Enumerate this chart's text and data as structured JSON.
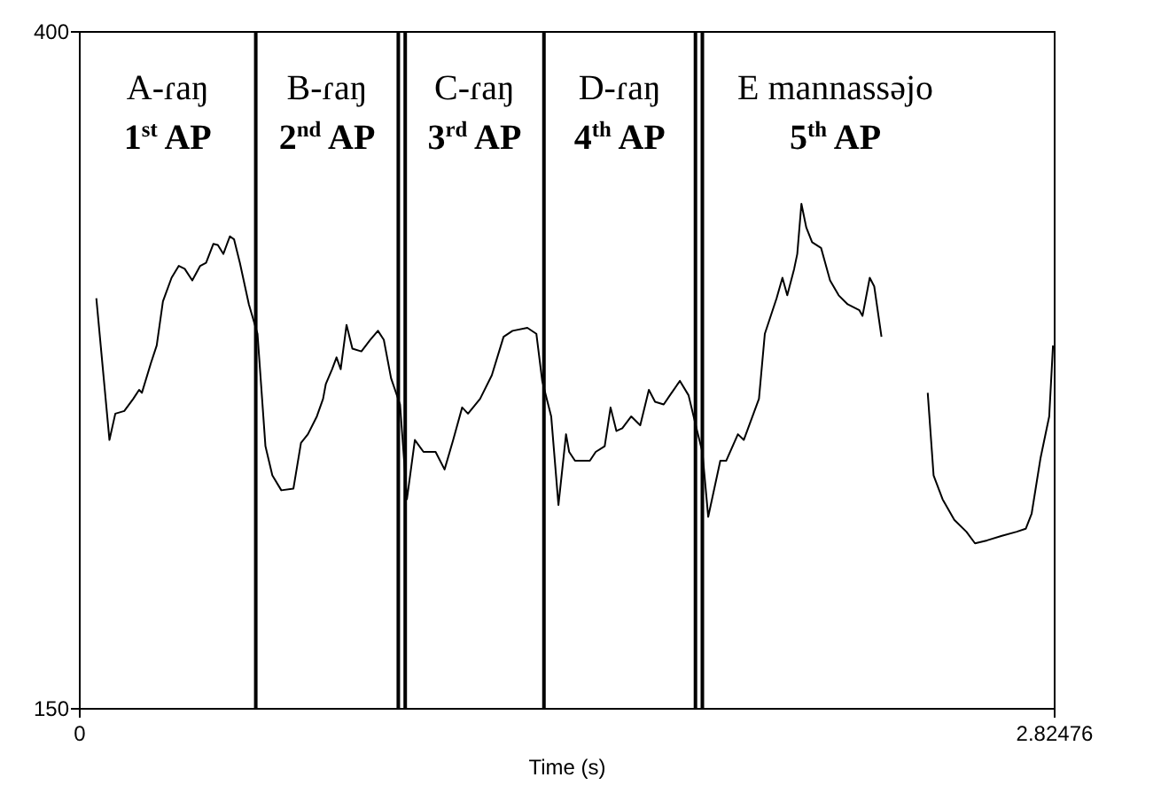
{
  "chart_data": {
    "type": "line",
    "xlabel": "Time (s)",
    "xlim": [
      0,
      2.82476
    ],
    "xticks": [
      0,
      2.82476
    ],
    "ylim": [
      150,
      400
    ],
    "yticks": [
      150,
      400
    ],
    "line_style": "solid",
    "marker": "none",
    "series": [
      {
        "color": "#000000",
        "x": [
          0.048,
          0.086,
          0.103,
          0.129,
          0.155,
          0.172,
          0.18,
          0.206,
          0.223,
          0.241,
          0.266,
          0.287,
          0.304,
          0.326,
          0.349,
          0.366,
          0.387,
          0.4,
          0.416,
          0.435,
          0.447,
          0.464,
          0.49,
          0.515,
          0.538,
          0.558,
          0.584,
          0.619,
          0.641,
          0.661,
          0.687,
          0.705,
          0.713,
          0.731,
          0.744,
          0.756,
          0.773,
          0.79,
          0.816,
          0.842,
          0.864,
          0.881,
          0.902,
          0.928,
          0.948,
          0.971,
          0.996,
          1.031,
          1.057,
          1.082,
          1.108,
          1.125,
          1.16,
          1.194,
          1.228,
          1.254,
          1.297,
          1.323,
          1.34,
          1.366,
          1.387,
          1.409,
          1.418,
          1.435,
          1.478,
          1.495,
          1.521,
          1.538,
          1.555,
          1.572,
          1.598,
          1.624,
          1.649,
          1.667,
          1.692,
          1.71,
          1.739,
          1.764,
          1.787,
          1.804,
          1.821,
          1.856,
          1.873,
          1.907,
          1.924,
          1.968,
          1.985,
          2.019,
          2.036,
          2.05,
          2.07,
          2.079,
          2.091,
          2.105,
          2.122,
          2.148,
          2.16,
          2.174,
          2.199,
          2.225,
          2.259,
          2.268,
          2.289,
          2.302,
          2.323,
          2.39,
          2.457,
          2.474,
          2.5,
          2.534,
          2.569,
          2.594,
          2.629,
          2.672,
          2.715,
          2.741,
          2.758,
          2.784,
          2.809,
          2.82
        ],
        "values": [
          301.6,
          249.3,
          259,
          260,
          264.5,
          267.8,
          266.7,
          277.6,
          284.2,
          300.5,
          309.2,
          313.6,
          312.5,
          308.2,
          313.6,
          314.7,
          321.7,
          321.3,
          318,
          324.5,
          323.4,
          314.7,
          299.4,
          288.5,
          247,
          236.2,
          230.7,
          231.3,
          248.2,
          251.4,
          258,
          264.5,
          270,
          275.4,
          279.8,
          275.4,
          291.8,
          283,
          282,
          286.3,
          289.6,
          286.3,
          272.1,
          262.4,
          227.4,
          249.3,
          244.9,
          244.9,
          238.4,
          249.3,
          261.3,
          259,
          264.5,
          273.2,
          287.4,
          289.6,
          290.7,
          288.5,
          271.1,
          258,
          225.3,
          251.4,
          244.9,
          241.6,
          241.6,
          244.9,
          247,
          261.3,
          252.6,
          253.6,
          258,
          254.7,
          267.8,
          263.4,
          262.4,
          265.8,
          271.1,
          265.8,
          253.6,
          244.9,
          220.9,
          241.6,
          241.6,
          251.4,
          249.3,
          264.5,
          288.5,
          301.6,
          309.2,
          302.7,
          312.5,
          318,
          336.5,
          327.8,
          322.3,
          320.2,
          314.7,
          308.2,
          302.7,
          299.4,
          297.2,
          295.1,
          309.2,
          306,
          287.4,
          null,
          266.7,
          236.2,
          227.4,
          219.8,
          215.4,
          211.1,
          212.2,
          213.9,
          215.4,
          216.5,
          222,
          242.7,
          258,
          284.2
        ]
      }
    ],
    "ref_lines": [
      {
        "axis": "x",
        "value": 0.51,
        "color": "#000000"
      },
      {
        "axis": "x",
        "value": 0.923,
        "color": "#000000"
      },
      {
        "axis": "x",
        "value": 0.943,
        "color": "#000000"
      },
      {
        "axis": "x",
        "value": 1.345,
        "color": "#000000"
      },
      {
        "axis": "x",
        "value": 1.784,
        "color": "#000000"
      },
      {
        "axis": "x",
        "value": 1.804,
        "color": "#000000"
      }
    ],
    "annotations": [
      "A-ɾaŋ",
      "1$^{st}$ AP",
      "B-ɾaŋ",
      "2$^{nd}$ AP",
      "C-ɾaŋ",
      "3$^{rd}$ AP",
      "D-ɾaŋ",
      "4$^{th}$ AP",
      "E mannassəjo",
      "5$^{th}$ AP"
    ]
  }
}
